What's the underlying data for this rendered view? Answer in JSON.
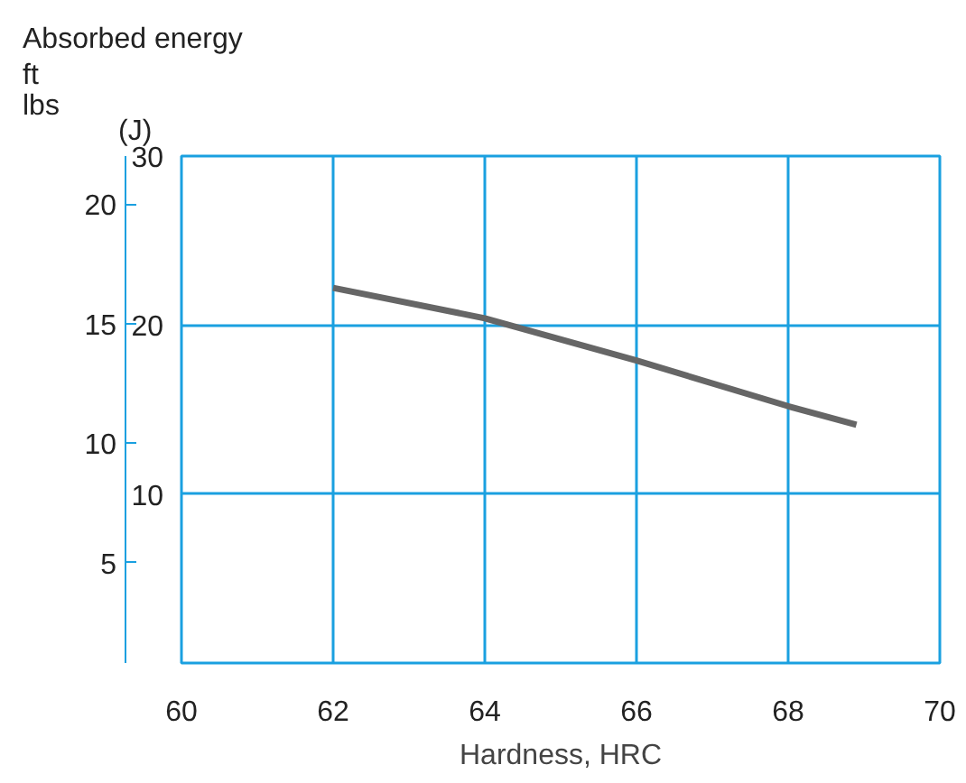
{
  "chart_data": {
    "type": "line",
    "title": "Absorbed energy",
    "xlabel": "Hardness, HRC",
    "ylabel": "(J)",
    "y2label": "ft\nlbs",
    "x": [
      62,
      64,
      66,
      68,
      68.9
    ],
    "series": [
      {
        "color": "#666666",
        "values": [
          22.2,
          20.4,
          17.9,
          15.2,
          14.1
        ]
      }
    ],
    "xlim": [
      60,
      70
    ],
    "xticks": [
      60,
      62,
      64,
      66,
      68,
      70
    ],
    "ylim": [
      0,
      30
    ],
    "yticks": [
      10,
      20,
      30
    ],
    "y2lim": [
      0.8,
      22
    ],
    "y2ticks": [
      5,
      10,
      15,
      20
    ],
    "grid": true,
    "legend": false,
    "marker": "none",
    "line_style": "solid"
  }
}
